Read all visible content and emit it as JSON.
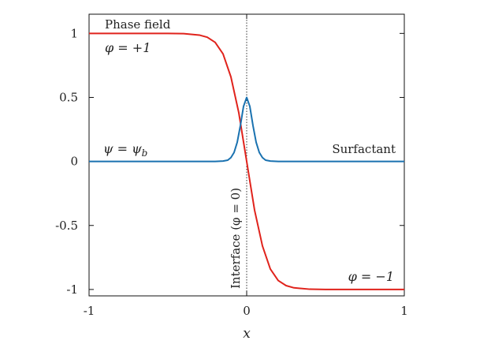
{
  "chart_data": {
    "type": "line",
    "xlabel": "x",
    "ylabel": "",
    "xlim": [
      -1,
      1
    ],
    "ylim": [
      -1.05,
      1.15
    ],
    "x_ticks": [
      -1,
      0,
      1
    ],
    "x_tick_labels": [
      "-1",
      "0",
      "1"
    ],
    "y_ticks": [
      1,
      0.5,
      0,
      -0.5,
      -1
    ],
    "y_tick_labels": [
      "1",
      "0.5",
      "0",
      "-0.5",
      "-1"
    ],
    "grid": false,
    "legend": "none",
    "series": [
      {
        "name": "Phase field",
        "color": "#e0231c",
        "x": [
          -1.0,
          -0.5,
          -0.4,
          -0.3,
          -0.25,
          -0.2,
          -0.15,
          -0.1,
          -0.05,
          0.0,
          0.05,
          0.1,
          0.15,
          0.2,
          0.25,
          0.3,
          0.4,
          0.5,
          1.0
        ],
        "y": [
          1.0,
          1.0,
          0.998,
          0.987,
          0.97,
          0.93,
          0.84,
          0.66,
          0.38,
          0.0,
          -0.38,
          -0.66,
          -0.84,
          -0.93,
          -0.97,
          -0.987,
          -0.998,
          -1.0,
          -1.0
        ]
      },
      {
        "name": "Surfactant",
        "color": "#1a72b0",
        "x": [
          -1.0,
          -0.2,
          -0.15,
          -0.12,
          -0.1,
          -0.08,
          -0.06,
          -0.04,
          -0.02,
          0.0,
          0.02,
          0.04,
          0.06,
          0.08,
          0.1,
          0.12,
          0.15,
          0.2,
          1.0
        ],
        "y": [
          0.0,
          0.0,
          0.003,
          0.01,
          0.03,
          0.07,
          0.15,
          0.28,
          0.43,
          0.5,
          0.43,
          0.28,
          0.15,
          0.07,
          0.03,
          0.01,
          0.003,
          0.0,
          0.0
        ]
      }
    ],
    "interface_line_x": 0,
    "annotations": {
      "phase_field": "Phase field",
      "phi_plus": "φ = +1",
      "psi_b": "ψ = ψ",
      "psi_b_sub": "b",
      "surfactant": "Surfactant",
      "phi_minus": "φ = −1",
      "interface": "Interface (φ = 0)"
    }
  }
}
